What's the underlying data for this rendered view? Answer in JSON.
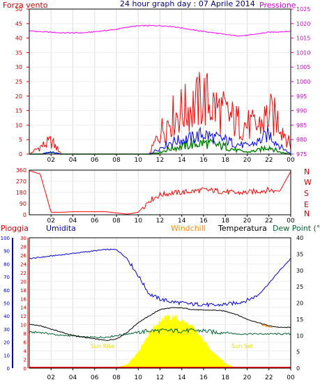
{
  "title": "24 hour graph day : 07 Aprile 2014",
  "colors": {
    "wind": "#ff0000",
    "gust": "#ff0000",
    "wind_avg": "#0000ff",
    "wind_low": "#008000",
    "pressure": "#ff00ff",
    "direction": "#ff0000",
    "humidity": "#0000cc",
    "temperature": "#000000",
    "dewpoint": "#006633",
    "windchill": "#ff8800",
    "rain": "#ff0000",
    "solar": "#ffff00",
    "sun_label": "#dddd00"
  },
  "x_ticks": [
    "02",
    "04",
    "06",
    "08",
    "10",
    "12",
    "14",
    "16",
    "18",
    "20",
    "22",
    "00"
  ],
  "chart_data": [
    {
      "type": "line",
      "panel": "wind-pressure",
      "left_label": "Forza vento",
      "right_label": "Pressione",
      "ylim_left": [
        0,
        50
      ],
      "yticks_left": [
        0,
        5,
        10,
        15,
        20,
        25,
        30,
        35,
        40,
        45,
        50
      ],
      "ylim_right": [
        975,
        1025
      ],
      "yticks_right": [
        975,
        980,
        985,
        990,
        995,
        1000,
        1005,
        1010,
        1015,
        1020,
        1025
      ],
      "x_hours": [
        0,
        1,
        2,
        3,
        4,
        5,
        6,
        7,
        8,
        9,
        10,
        11,
        12,
        13,
        14,
        15,
        16,
        17,
        18,
        19,
        20,
        21,
        22,
        23,
        24
      ],
      "series": [
        {
          "key": "pressure",
          "axis": "right",
          "values": [
            1017.5,
            1017.2,
            1017.0,
            1016.8,
            1016.8,
            1016.8,
            1017.2,
            1017.6,
            1018.0,
            1018.8,
            1019.2,
            1019.3,
            1019.3,
            1019.0,
            1018.5,
            1017.8,
            1017.3,
            1016.8,
            1016.2,
            1015.8,
            1015.9,
            1016.5,
            1017.0,
            1017.2,
            1017.3
          ]
        },
        {
          "key": "wind_max",
          "axis": "left",
          "values": [
            0,
            4,
            7,
            0,
            0,
            0,
            0,
            0,
            0,
            0,
            0,
            0,
            12,
            20,
            24,
            26,
            31,
            26,
            22,
            18,
            16,
            15,
            22,
            18,
            4
          ]
        },
        {
          "key": "wind_avg",
          "axis": "left",
          "values": [
            0,
            0,
            1,
            0,
            0,
            0,
            0,
            0,
            0,
            0,
            0,
            0,
            3,
            6,
            7,
            8,
            10,
            8,
            7,
            5,
            4,
            6,
            10,
            4,
            0
          ]
        },
        {
          "key": "wind_low",
          "axis": "left",
          "values": [
            0,
            0,
            1,
            0,
            0,
            0,
            0,
            0,
            0,
            0,
            0,
            0,
            1,
            3,
            4,
            5,
            6,
            5,
            4,
            2,
            1,
            2,
            4,
            1,
            0
          ]
        }
      ]
    },
    {
      "type": "line",
      "panel": "wind-direction",
      "right_labels": [
        "N",
        "W",
        "S",
        "E",
        "N"
      ],
      "ylim": [
        0,
        360
      ],
      "yticks": [
        0,
        90,
        180,
        270,
        360
      ],
      "x_hours": [
        0,
        1,
        2,
        3,
        4,
        5,
        6,
        7,
        8,
        9,
        10,
        11,
        12,
        13,
        14,
        15,
        16,
        17,
        18,
        19,
        20,
        21,
        22,
        23,
        24
      ],
      "series": [
        {
          "key": "direction",
          "values": [
            355,
            330,
            20,
            20,
            25,
            25,
            25,
            25,
            15,
            5,
            20,
            115,
            160,
            175,
            180,
            190,
            200,
            195,
            185,
            175,
            180,
            190,
            200,
            190,
            350
          ]
        }
      ]
    },
    {
      "type": "line",
      "panel": "temperature-humidity",
      "labels": {
        "rain": "Pioggia",
        "humidity": "Umidita",
        "windchill": "Windchill",
        "temperature": "Temperatura",
        "dewpoint": "Dew Point (°C"
      },
      "sun_rise": "Sun Rise",
      "sun_set": "Sun Set",
      "ylim_humidity": [
        0,
        100
      ],
      "yticks_humidity": [
        0,
        10,
        20,
        30,
        40,
        50,
        60,
        70,
        80,
        90,
        100
      ],
      "ylim_rain": [
        0,
        30
      ],
      "yticks_rain": [
        0,
        2,
        4,
        6,
        8,
        10,
        12,
        14,
        16,
        18,
        20,
        22,
        24,
        26,
        28,
        30
      ],
      "ylim_temp": [
        0,
        40
      ],
      "yticks_temp": [
        0,
        5,
        10,
        15,
        20,
        25,
        30,
        35,
        40
      ],
      "x_hours": [
        0,
        1,
        2,
        3,
        4,
        5,
        6,
        7,
        8,
        9,
        10,
        11,
        12,
        13,
        14,
        15,
        16,
        17,
        18,
        19,
        20,
        21,
        22,
        23,
        24
      ],
      "series": [
        {
          "key": "humidity",
          "values": [
            84,
            85,
            86,
            87,
            88,
            89,
            90,
            91,
            91,
            84,
            71,
            57,
            53,
            51,
            50,
            49,
            49,
            48,
            49,
            50,
            52,
            56,
            65,
            75,
            84
          ]
        },
        {
          "key": "temperature",
          "values": [
            13.5,
            13,
            12,
            11,
            10,
            9.5,
            9,
            8.5,
            9,
            11,
            14,
            16,
            18,
            18.5,
            18.5,
            18,
            17.8,
            17.8,
            17.5,
            16.5,
            15,
            14,
            13,
            12.5,
            12.5
          ]
        },
        {
          "key": "dewpoint",
          "values": [
            11,
            11,
            10.5,
            10,
            10,
            9.5,
            9.5,
            9.5,
            10,
            10.5,
            11,
            11.5,
            11.5,
            11.5,
            11.5,
            11.5,
            11.5,
            11,
            11,
            10.5,
            10.5,
            10.5,
            10.5,
            10.5,
            10.5
          ]
        },
        {
          "key": "solar",
          "values": [
            0,
            0,
            0,
            0,
            0,
            0,
            0,
            0,
            5,
            40,
            180,
            380,
            520,
            560,
            520,
            440,
            300,
            160,
            50,
            0,
            0,
            0,
            0,
            0,
            0
          ]
        },
        {
          "key": "rain",
          "values": [
            0,
            0,
            0,
            0,
            0,
            0,
            0,
            0,
            0,
            0,
            0,
            0,
            0,
            0,
            0,
            0,
            0,
            0,
            0,
            0,
            0,
            0,
            0,
            0,
            0
          ]
        }
      ]
    }
  ]
}
